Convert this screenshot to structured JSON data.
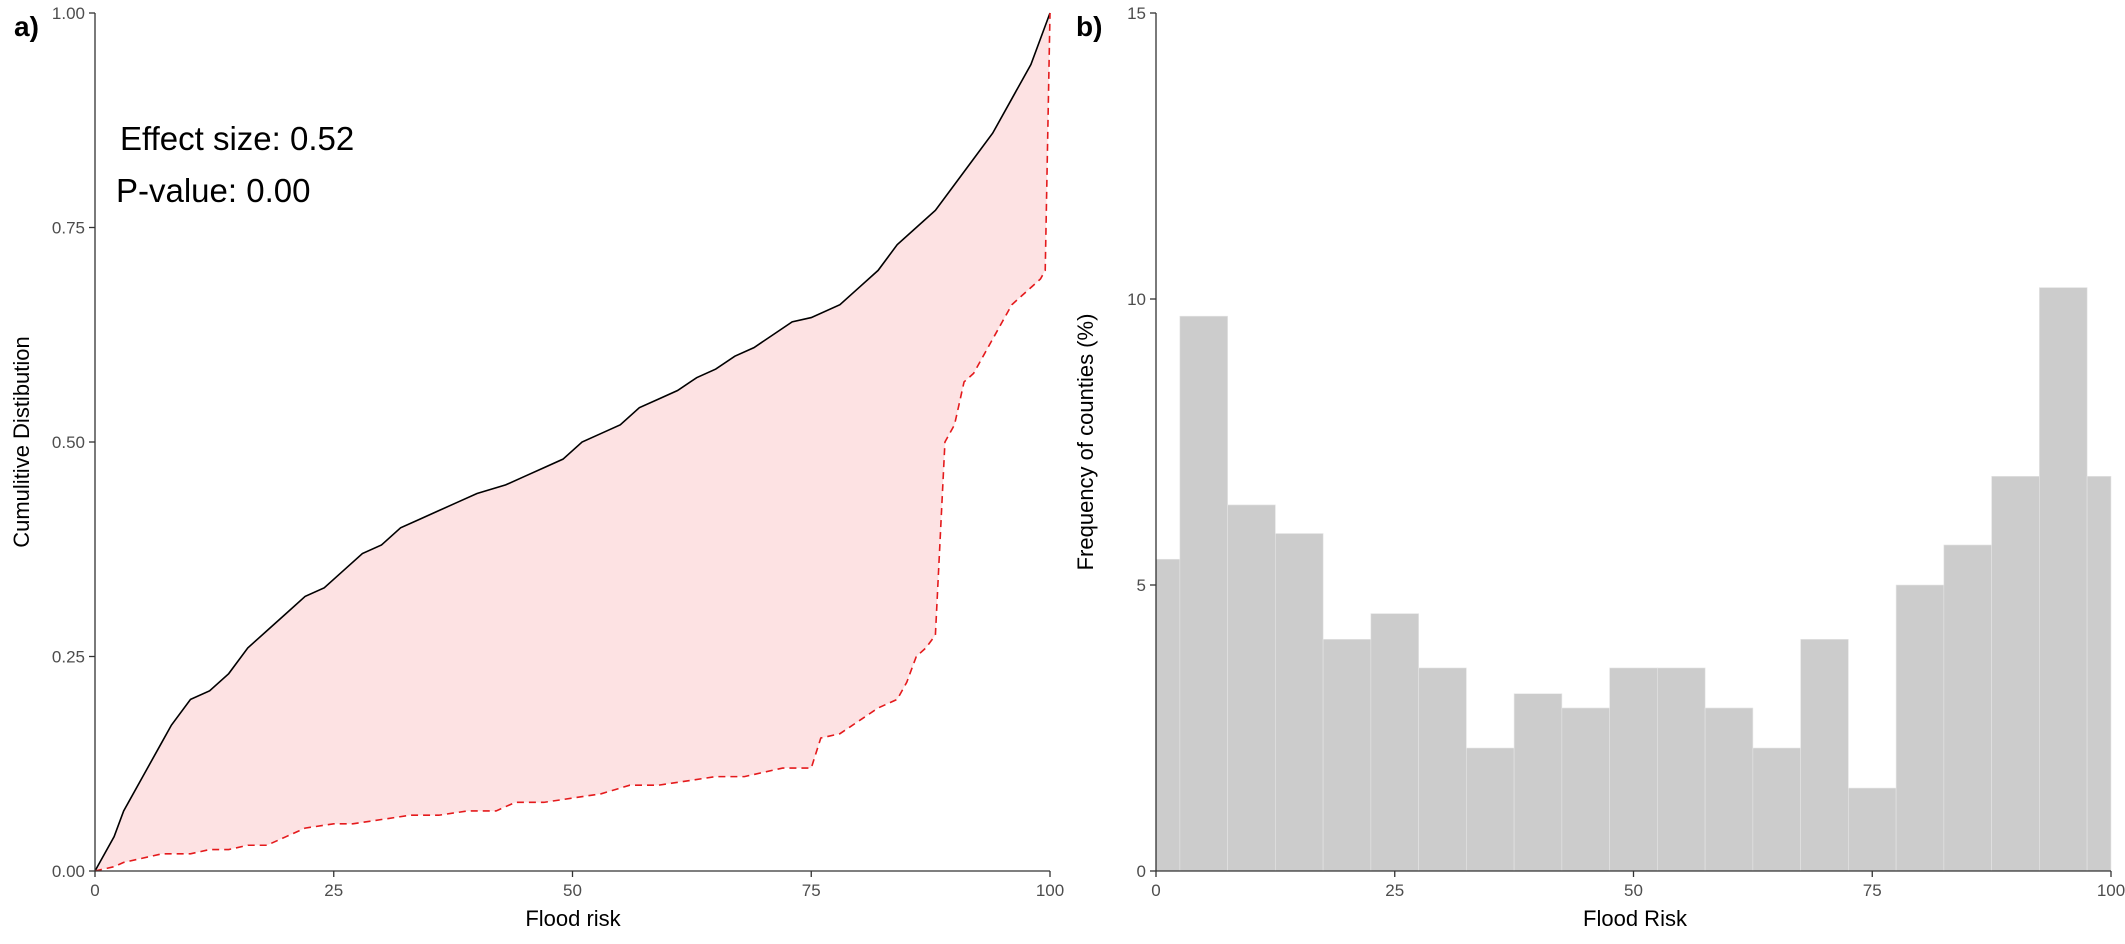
{
  "chart_data": [
    {
      "type": "line",
      "panel_label": "a)",
      "xlabel": "Flood risk",
      "ylabel": "Cumulitive Distibution",
      "xlim": [
        0,
        100
      ],
      "ylim": [
        0,
        1
      ],
      "x_ticks": [
        "0",
        "25",
        "50",
        "75",
        "100"
      ],
      "y_ticks": [
        "0.00",
        "0.25",
        "0.50",
        "0.75",
        "1.00"
      ],
      "annotations": [
        "Effect size: 0.52",
        "P-value: 0.00"
      ],
      "fill_color": "#fde2e3",
      "series": [
        {
          "style": "solid",
          "color": "#000000",
          "x": [
            0,
            2,
            3,
            5,
            7,
            8,
            10,
            12,
            14,
            16,
            18,
            20,
            22,
            24,
            26,
            28,
            30,
            32,
            34,
            36,
            38,
            40,
            43,
            45,
            47,
            49,
            51,
            53,
            55,
            57,
            59,
            61,
            63,
            65,
            67,
            69,
            71,
            73,
            75,
            78,
            80,
            82,
            84,
            86,
            88,
            90,
            92,
            94,
            96,
            98,
            100
          ],
          "y": [
            0,
            0.04,
            0.07,
            0.11,
            0.15,
            0.17,
            0.2,
            0.21,
            0.23,
            0.26,
            0.28,
            0.3,
            0.32,
            0.33,
            0.35,
            0.37,
            0.38,
            0.4,
            0.41,
            0.42,
            0.43,
            0.44,
            0.45,
            0.46,
            0.47,
            0.48,
            0.5,
            0.51,
            0.52,
            0.54,
            0.55,
            0.56,
            0.575,
            0.585,
            0.6,
            0.61,
            0.625,
            0.64,
            0.645,
            0.66,
            0.68,
            0.7,
            0.73,
            0.75,
            0.77,
            0.8,
            0.83,
            0.86,
            0.9,
            0.94,
            1.0
          ]
        },
        {
          "style": "dashed",
          "color": "#e41a1c",
          "x": [
            0,
            2,
            3,
            5,
            7,
            10,
            12,
            14,
            16,
            18,
            20,
            22,
            25,
            27,
            30,
            33,
            36,
            39,
            42,
            44,
            47,
            50,
            53,
            56,
            59,
            62,
            65,
            68,
            70,
            72,
            75,
            76,
            78,
            80,
            82,
            84,
            85,
            86,
            87,
            88,
            89,
            90,
            91,
            92,
            93,
            95,
            96,
            97,
            99,
            99.5,
            100
          ],
          "y": [
            0,
            0.005,
            0.01,
            0.015,
            0.02,
            0.02,
            0.025,
            0.025,
            0.03,
            0.03,
            0.04,
            0.05,
            0.055,
            0.055,
            0.06,
            0.065,
            0.065,
            0.07,
            0.07,
            0.08,
            0.08,
            0.085,
            0.09,
            0.1,
            0.1,
            0.105,
            0.11,
            0.11,
            0.115,
            0.12,
            0.12,
            0.155,
            0.16,
            0.175,
            0.19,
            0.2,
            0.22,
            0.25,
            0.26,
            0.275,
            0.5,
            0.52,
            0.57,
            0.58,
            0.6,
            0.64,
            0.66,
            0.67,
            0.69,
            0.7,
            1.0
          ]
        }
      ]
    },
    {
      "type": "bar",
      "panel_label": "b)",
      "xlabel": "Flood Risk",
      "ylabel": "Frequency of counties (%)",
      "xlim": [
        0,
        100
      ],
      "ylim": [
        0,
        15
      ],
      "x_ticks": [
        "0",
        "25",
        "50",
        "75",
        "100"
      ],
      "y_ticks": [
        "0",
        "5",
        "10",
        "15"
      ],
      "bar_color": "#cccccc",
      "bins": [
        {
          "x0": 0,
          "x1": 2.5,
          "value": 5.45
        },
        {
          "x0": 2.5,
          "x1": 7.5,
          "value": 9.7
        },
        {
          "x0": 7.5,
          "x1": 12.5,
          "value": 6.4
        },
        {
          "x0": 12.5,
          "x1": 17.5,
          "value": 5.9
        },
        {
          "x0": 17.5,
          "x1": 22.5,
          "value": 4.05
        },
        {
          "x0": 22.5,
          "x1": 27.5,
          "value": 4.5
        },
        {
          "x0": 27.5,
          "x1": 32.5,
          "value": 3.55
        },
        {
          "x0": 32.5,
          "x1": 37.5,
          "value": 2.15
        },
        {
          "x0": 37.5,
          "x1": 42.5,
          "value": 3.1
        },
        {
          "x0": 42.5,
          "x1": 47.5,
          "value": 2.85
        },
        {
          "x0": 47.5,
          "x1": 52.5,
          "value": 3.55
        },
        {
          "x0": 52.5,
          "x1": 57.5,
          "value": 3.55
        },
        {
          "x0": 57.5,
          "x1": 62.5,
          "value": 2.85
        },
        {
          "x0": 62.5,
          "x1": 67.5,
          "value": 2.15
        },
        {
          "x0": 67.5,
          "x1": 72.5,
          "value": 4.05
        },
        {
          "x0": 72.5,
          "x1": 77.5,
          "value": 1.45
        },
        {
          "x0": 77.5,
          "x1": 82.5,
          "value": 5.0
        },
        {
          "x0": 82.5,
          "x1": 87.5,
          "value": 5.7
        },
        {
          "x0": 87.5,
          "x1": 92.5,
          "value": 6.9
        },
        {
          "x0": 92.5,
          "x1": 97.5,
          "value": 10.2
        },
        {
          "x0": 97.5,
          "x1": 100,
          "value": 6.9
        }
      ]
    }
  ]
}
